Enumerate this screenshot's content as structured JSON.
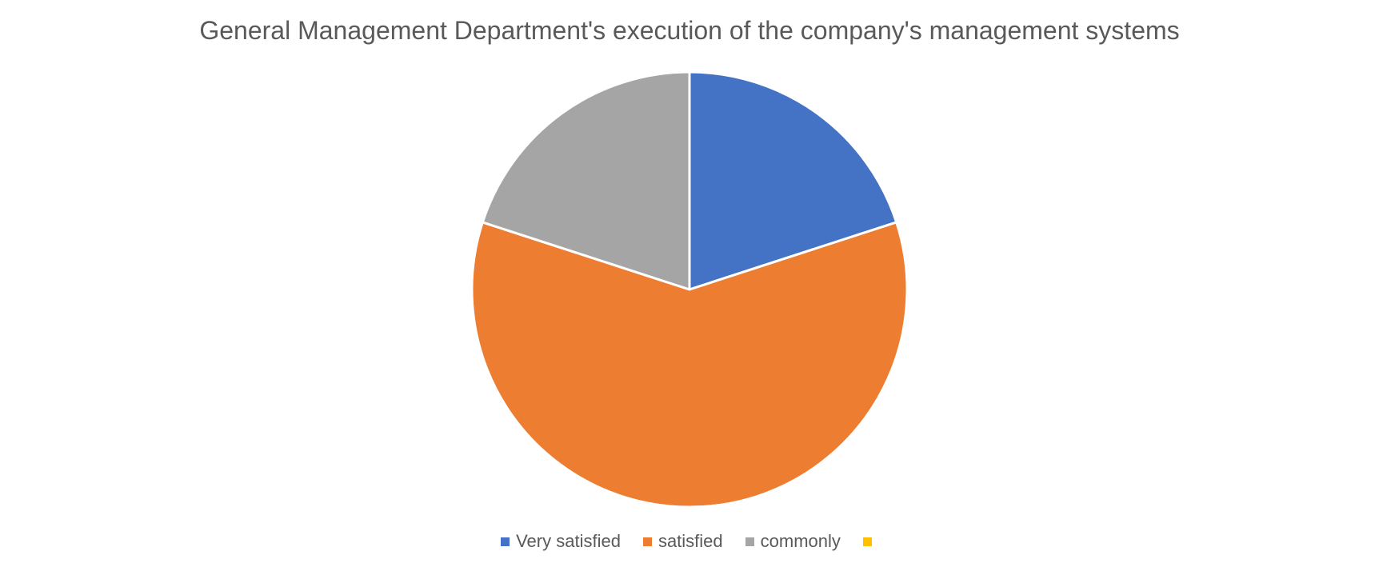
{
  "chart_data": {
    "type": "pie",
    "title": "General Management Department's execution of the company's management systems",
    "categories": [
      "Very satisfied",
      "satisfied",
      "commonly",
      ""
    ],
    "values": [
      20,
      60,
      20,
      0
    ],
    "colors": [
      "#4472C4",
      "#ED7D31",
      "#A5A5A5",
      "#FFC000"
    ],
    "legend_position": "bottom",
    "start_angle_deg": 0,
    "direction": "clockwise"
  }
}
